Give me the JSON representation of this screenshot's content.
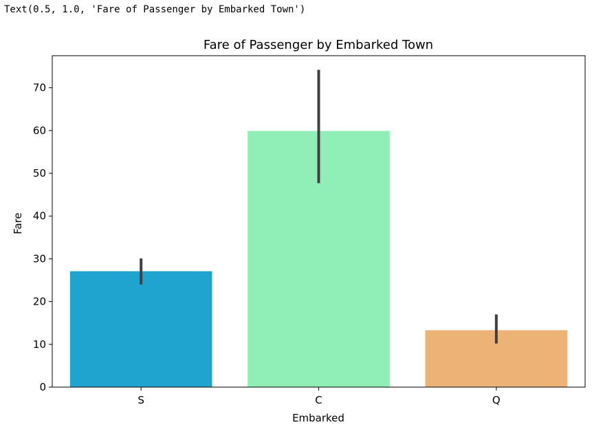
{
  "output": {
    "text": "Text(0.5, 1.0, 'Fare of Passenger by Embarked Town')"
  },
  "chart_data": {
    "type": "bar",
    "title": "Fare of Passenger by Embarked Town",
    "xlabel": "Embarked",
    "ylabel": "Fare",
    "categories": [
      "S",
      "C",
      "Q"
    ],
    "values": [
      27.1,
      59.9,
      13.3
    ],
    "error_low": [
      24.0,
      47.7,
      10.2
    ],
    "error_high": [
      30.1,
      74.2,
      17.0
    ],
    "colors": [
      "#1ea4cf",
      "#90efb7",
      "#edb275"
    ],
    "error_color": "#404040",
    "ylim": [
      0,
      77.5
    ],
    "yticks": [
      0,
      10,
      20,
      30,
      40,
      50,
      60,
      70
    ],
    "grid": false
  }
}
